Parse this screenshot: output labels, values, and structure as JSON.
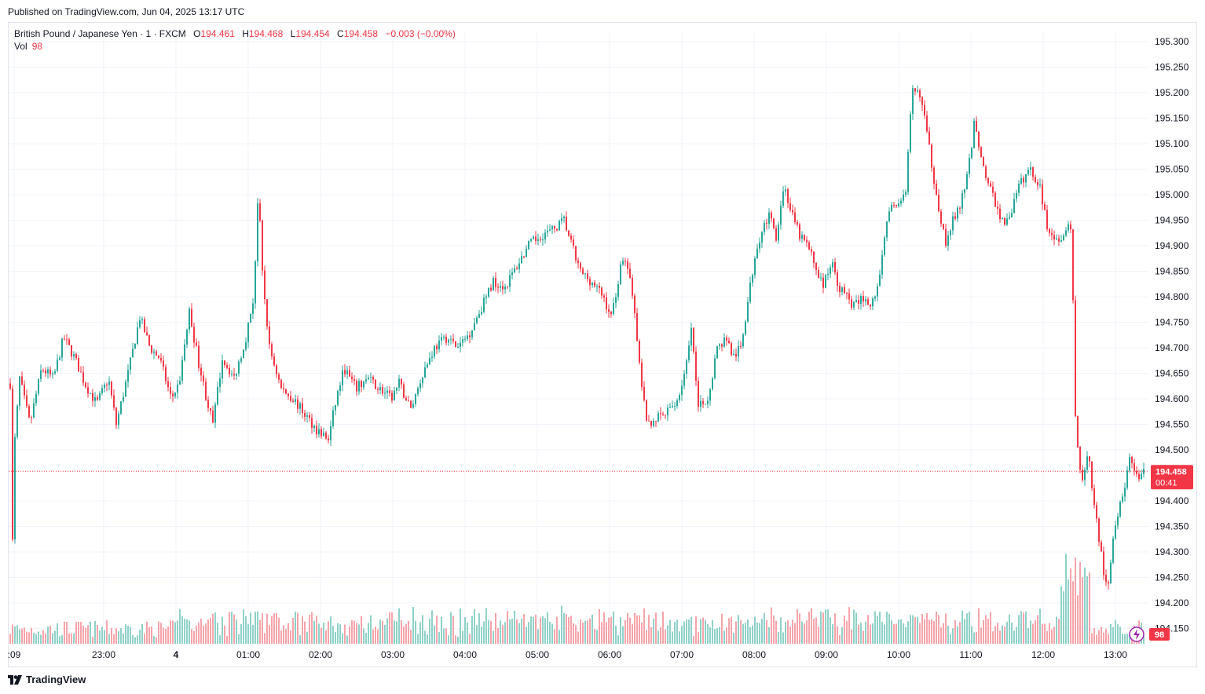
{
  "header": {
    "published": "Published on TradingView.com, Jun 04, 2025 13:17 UTC"
  },
  "legend": {
    "symbol": "British Pound / Japanese Yen · 1 · FXCM",
    "o_label": "O",
    "o_value": "194.461",
    "h_label": "H",
    "h_value": "194.468",
    "l_label": "L",
    "l_value": "194.454",
    "c_label": "C",
    "c_value": "194.458",
    "change": "−0.003 (−0.00%)",
    "vol_label": "Vol",
    "vol_value": "98"
  },
  "footer": {
    "brand": "TradingView"
  },
  "colors": {
    "up": "#26a69a",
    "down": "#f23645",
    "up_vol": "#8fd1c8",
    "down_vol": "#f6a4aa",
    "grid": "#f0f3fa",
    "text": "#131722"
  },
  "chart_data": {
    "type": "candlestick",
    "interval": "1 minute",
    "ylim": [
      194.12,
      195.32
    ],
    "yticks": [
      "195.300",
      "195.250",
      "195.200",
      "195.150",
      "195.100",
      "195.050",
      "195.000",
      "194.950",
      "194.900",
      "194.850",
      "194.800",
      "194.750",
      "194.700",
      "194.650",
      "194.600",
      "194.550",
      "194.500",
      "194.400",
      "194.350",
      "194.300",
      "194.250",
      "194.200",
      "194.150"
    ],
    "xticks": [
      ":09",
      "23:00",
      "4",
      "01:00",
      "02:00",
      "03:00",
      "04:00",
      "05:00",
      "06:00",
      "07:00",
      "08:00",
      "09:00",
      "10:00",
      "11:00",
      "12:00",
      "13:00"
    ],
    "last_price": "194.458",
    "countdown": "00:41",
    "last_volume": "98",
    "price_path": [
      [
        0,
        194.63
      ],
      [
        3,
        194.32
      ],
      [
        6,
        194.52
      ],
      [
        12,
        194.64
      ],
      [
        25,
        194.55
      ],
      [
        40,
        194.66
      ],
      [
        55,
        194.64
      ],
      [
        68,
        194.72
      ],
      [
        82,
        194.68
      ],
      [
        95,
        194.63
      ],
      [
        110,
        194.59
      ],
      [
        125,
        194.64
      ],
      [
        135,
        194.55
      ],
      [
        150,
        194.65
      ],
      [
        165,
        194.76
      ],
      [
        178,
        194.7
      ],
      [
        190,
        194.68
      ],
      [
        205,
        194.6
      ],
      [
        215,
        194.63
      ],
      [
        228,
        194.77
      ],
      [
        240,
        194.67
      ],
      [
        250,
        194.6
      ],
      [
        258,
        194.55
      ],
      [
        270,
        194.68
      ],
      [
        285,
        194.64
      ],
      [
        300,
        194.72
      ],
      [
        310,
        194.8
      ],
      [
        316,
        195.02
      ],
      [
        320,
        194.86
      ],
      [
        330,
        194.7
      ],
      [
        345,
        194.62
      ],
      [
        360,
        194.6
      ],
      [
        375,
        194.57
      ],
      [
        390,
        194.54
      ],
      [
        405,
        194.52
      ],
      [
        415,
        194.6
      ],
      [
        425,
        194.66
      ],
      [
        440,
        194.62
      ],
      [
        455,
        194.64
      ],
      [
        470,
        194.62
      ],
      [
        485,
        194.6
      ],
      [
        495,
        194.63
      ],
      [
        510,
        194.58
      ],
      [
        525,
        194.65
      ],
      [
        540,
        194.7
      ],
      [
        555,
        194.72
      ],
      [
        570,
        194.7
      ],
      [
        585,
        194.73
      ],
      [
        600,
        194.78
      ],
      [
        615,
        194.83
      ],
      [
        630,
        194.82
      ],
      [
        645,
        194.86
      ],
      [
        660,
        194.9
      ],
      [
        675,
        194.92
      ],
      [
        690,
        194.93
      ],
      [
        705,
        194.95
      ],
      [
        715,
        194.9
      ],
      [
        725,
        194.85
      ],
      [
        740,
        194.83
      ],
      [
        755,
        194.8
      ],
      [
        765,
        194.76
      ],
      [
        780,
        194.88
      ],
      [
        790,
        194.84
      ],
      [
        800,
        194.68
      ],
      [
        810,
        194.55
      ],
      [
        820,
        194.56
      ],
      [
        835,
        194.57
      ],
      [
        850,
        194.6
      ],
      [
        860,
        194.66
      ],
      [
        868,
        194.74
      ],
      [
        875,
        194.58
      ],
      [
        888,
        194.6
      ],
      [
        900,
        194.7
      ],
      [
        912,
        194.72
      ],
      [
        920,
        194.68
      ],
      [
        930,
        194.7
      ],
      [
        940,
        194.8
      ],
      [
        950,
        194.9
      ],
      [
        965,
        194.96
      ],
      [
        975,
        194.92
      ],
      [
        985,
        195.02
      ],
      [
        995,
        194.96
      ],
      [
        1005,
        194.92
      ],
      [
        1015,
        194.9
      ],
      [
        1025,
        194.86
      ],
      [
        1035,
        194.82
      ],
      [
        1045,
        194.87
      ],
      [
        1055,
        194.82
      ],
      [
        1065,
        194.8
      ],
      [
        1075,
        194.78
      ],
      [
        1085,
        194.8
      ],
      [
        1095,
        194.78
      ],
      [
        1105,
        194.82
      ],
      [
        1115,
        194.95
      ],
      [
        1125,
        194.98
      ],
      [
        1140,
        195.0
      ],
      [
        1148,
        195.2
      ],
      [
        1158,
        195.2
      ],
      [
        1165,
        195.14
      ],
      [
        1175,
        195.04
      ],
      [
        1185,
        194.95
      ],
      [
        1192,
        194.9
      ],
      [
        1200,
        194.95
      ],
      [
        1210,
        194.98
      ],
      [
        1220,
        195.05
      ],
      [
        1228,
        195.15
      ],
      [
        1235,
        195.08
      ],
      [
        1245,
        195.02
      ],
      [
        1255,
        194.98
      ],
      [
        1265,
        194.94
      ],
      [
        1275,
        194.97
      ],
      [
        1285,
        195.02
      ],
      [
        1298,
        195.05
      ],
      [
        1310,
        195.02
      ],
      [
        1320,
        194.94
      ],
      [
        1330,
        194.92
      ],
      [
        1340,
        194.91
      ],
      [
        1348,
        194.95
      ],
      [
        1352,
        194.9
      ],
      [
        1355,
        194.58
      ],
      [
        1360,
        194.48
      ],
      [
        1365,
        194.44
      ],
      [
        1372,
        194.5
      ],
      [
        1378,
        194.42
      ],
      [
        1385,
        194.34
      ],
      [
        1392,
        194.26
      ],
      [
        1398,
        194.24
      ],
      [
        1405,
        194.35
      ],
      [
        1415,
        194.4
      ],
      [
        1425,
        194.48
      ],
      [
        1435,
        194.44
      ],
      [
        1445,
        194.458
      ]
    ]
  }
}
